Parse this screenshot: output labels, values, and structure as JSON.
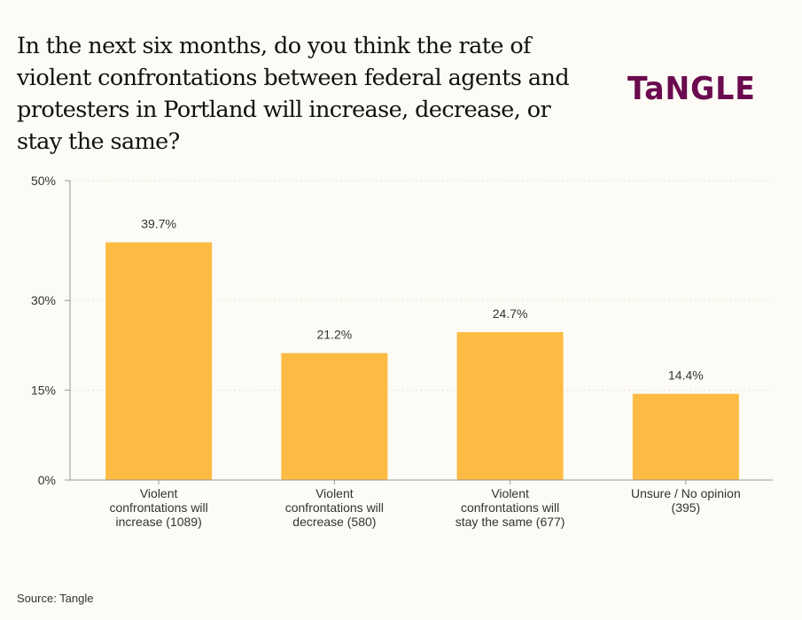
{
  "header": {
    "title": "In the next six months, do you think the rate of violent confrontations between federal agents and protesters in Portland will increase, decrease, or stay the same?",
    "logo": "TaNGLE"
  },
  "footer": {
    "source": "Source: Tangle"
  },
  "colors": {
    "bar": "#fdbb44",
    "axis": "#999999",
    "logo": "#6b0a4f",
    "background": "#fcfbf5"
  },
  "chart_data": {
    "type": "bar",
    "title": "In the next six months, do you think the rate of violent confrontations between federal agents and protesters in Portland will increase, decrease, or stay the same?",
    "xlabel": "",
    "ylabel": "",
    "ylim": [
      0,
      50
    ],
    "yticks": [
      0,
      15,
      30,
      50
    ],
    "ytick_labels": [
      "0%",
      "15%",
      "30%",
      "50%"
    ],
    "grid": true,
    "categories": [
      [
        "Violent",
        "confrontations will",
        "increase (1089)"
      ],
      [
        "Violent",
        "confrontations will",
        "decrease (580)"
      ],
      [
        "Violent",
        "confrontations will",
        "stay the same (677)"
      ],
      [
        "Unsure / No opinion",
        "(395)"
      ]
    ],
    "values": [
      39.7,
      21.2,
      24.7,
      14.4
    ],
    "data_labels": [
      "39.7%",
      "21.2%",
      "24.7%",
      "14.4%"
    ],
    "counts": [
      1089,
      580,
      677,
      395
    ],
    "source": "Source: Tangle"
  }
}
